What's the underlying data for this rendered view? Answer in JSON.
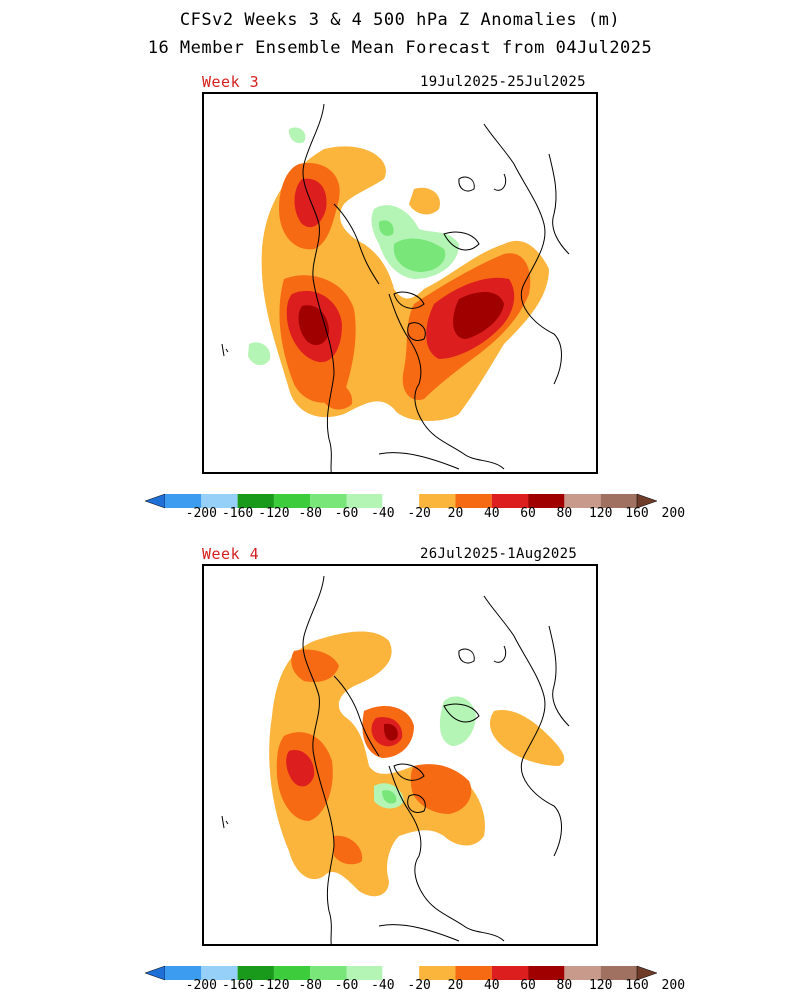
{
  "header": {
    "title": "CFSv2 Weeks 3 & 4 500 hPa Z Anomalies (m)",
    "subtitle": "16 Member Ensemble Mean Forecast from 04Jul2025"
  },
  "panels": [
    {
      "label": "Week 3",
      "dates": "19Jul2025-25Jul2025"
    },
    {
      "label": "Week 4",
      "dates": "26Jul2025-1Aug2025"
    }
  ],
  "colorbar": {
    "labels": [
      "-200",
      "-160",
      "-120",
      "-80",
      "-60",
      "-40",
      "-20",
      "20",
      "40",
      "60",
      "80",
      "120",
      "160",
      "200"
    ],
    "colors": [
      "#1e6fd6",
      "#3c9cef",
      "#96d0f8",
      "#1a9a1a",
      "#3ccc3c",
      "#78e678",
      "#b4f4b4",
      "#ffffff",
      "#fbb43c",
      "#f66a14",
      "#dc1e1e",
      "#a00000",
      "#c89a8c",
      "#a07060",
      "#6e3c28"
    ]
  },
  "colors": {
    "title_text": "#000000",
    "panel_label": "#d62020"
  }
}
